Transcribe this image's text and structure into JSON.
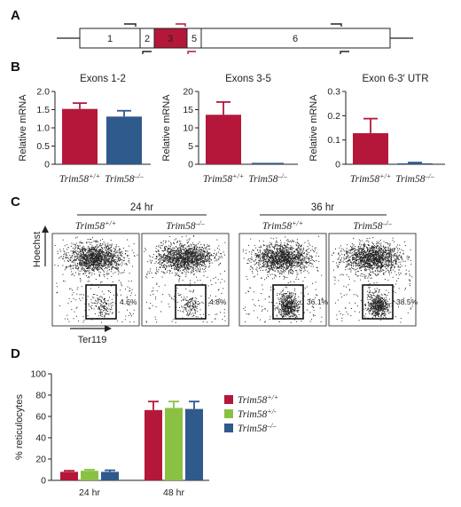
{
  "colors": {
    "wt": "#b5173a",
    "het": "#8bc143",
    "ko": "#2e5a8c",
    "exon3": "#b5173a",
    "primer_dark": "#222222",
    "primer_red": "#b5173a"
  },
  "panels": {
    "A": {
      "letter": "A",
      "exons": [
        "1",
        "2",
        "3",
        "5",
        "6"
      ]
    },
    "B": {
      "letter": "B"
    },
    "C": {
      "letter": "C",
      "timepoints": [
        "24 hr",
        "36 hr"
      ],
      "percents": [
        "4.6%",
        "4.8%",
        "36.1%",
        "38.5%"
      ],
      "yaxis": "Hoechst",
      "xaxis": "Ter119"
    },
    "D": {
      "letter": "D"
    }
  },
  "genotypes": {
    "wt": {
      "base": "Trim58",
      "sup": "+/+"
    },
    "het": {
      "base": "Trim58",
      "sup": "+/-"
    },
    "ko": {
      "base": "Trim58",
      "sup": "–/–"
    }
  },
  "chart_data": [
    {
      "type": "bar",
      "title": "Exons 1-2",
      "ylabel": "Relative mRNA",
      "categories": [
        "Trim58+/+",
        "Trim58–/–"
      ],
      "values": [
        1.52,
        1.31
      ],
      "errors": [
        0.16,
        0.16
      ],
      "ylim": [
        0,
        2.0
      ],
      "yticks": [
        "0",
        "0.5",
        "1.0",
        "1.5",
        "2.0"
      ]
    },
    {
      "type": "bar",
      "title": "Exons 3-5",
      "ylabel": "Relative mRNA",
      "categories": [
        "Trim58+/+",
        "Trim58–/–"
      ],
      "values": [
        13.6,
        0.0
      ],
      "errors": [
        3.5,
        0.0
      ],
      "ylim": [
        0,
        20
      ],
      "yticks": [
        "0",
        "5",
        "10",
        "15",
        "20"
      ]
    },
    {
      "type": "bar",
      "title": "Exon 6-3′ UTR",
      "ylabel": "Relative mRNA",
      "categories": [
        "Trim58+/+",
        "Trim58–/–"
      ],
      "values": [
        0.128,
        0.004
      ],
      "errors": [
        0.06,
        0.003
      ],
      "ylim": [
        0,
        0.3
      ],
      "yticks": [
        "0",
        "0.1",
        "0.2",
        "0.3"
      ]
    },
    {
      "type": "bar",
      "ylabel": "% reticulocytes",
      "categories": [
        "24 hr",
        "48 hr"
      ],
      "series": [
        {
          "name": "Trim58+/+",
          "values": [
            8,
            66
          ],
          "errors": [
            1,
            8
          ]
        },
        {
          "name": "Trim58+/-",
          "values": [
            9,
            68
          ],
          "errors": [
            1,
            6
          ]
        },
        {
          "name": "Trim58–/–",
          "values": [
            8,
            67
          ],
          "errors": [
            1.5,
            7
          ]
        }
      ],
      "ylim": [
        0,
        100
      ],
      "yticks": [
        "0",
        "20",
        "40",
        "60",
        "80",
        "100"
      ],
      "legend": "right"
    }
  ]
}
